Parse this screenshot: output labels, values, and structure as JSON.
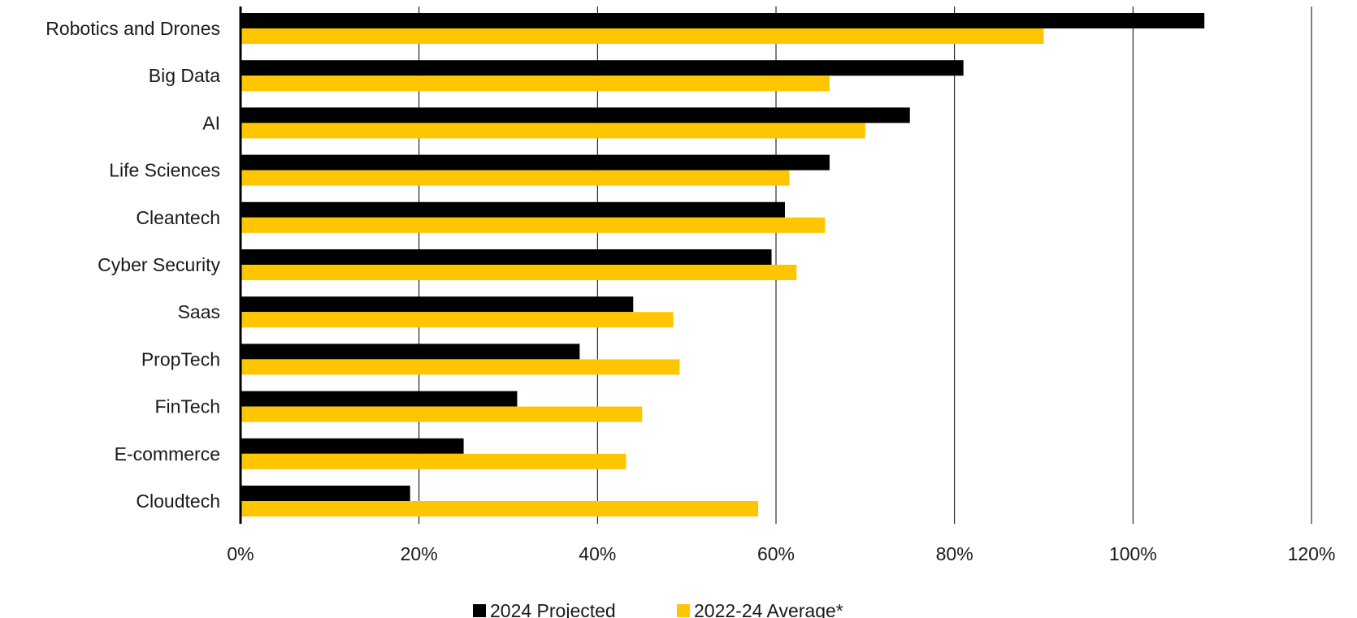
{
  "chart_data": {
    "type": "bar",
    "orientation": "horizontal",
    "categories": [
      "Robotics and Drones",
      "Big Data",
      "AI",
      "Life Sciences",
      "Cleantech",
      "Cyber Security",
      "Saas",
      "PropTech",
      "FinTech",
      "E-commerce",
      "Cloudtech"
    ],
    "series": [
      {
        "name": "2024 Projected",
        "color": "#000000",
        "values": [
          108,
          81,
          75,
          66,
          61,
          59.5,
          44,
          38,
          31,
          25,
          19
        ]
      },
      {
        "name": "2022-24 Average*",
        "color": "#FFC600",
        "values": [
          90,
          66,
          70,
          61.5,
          65.5,
          62.3,
          48.5,
          49.2,
          45,
          43.2,
          58
        ]
      }
    ],
    "xlim": [
      0,
      120
    ],
    "xticks": [
      0,
      20,
      40,
      60,
      80,
      100,
      120
    ],
    "xtick_labels": [
      "0%",
      "20%",
      "40%",
      "60%",
      "80%",
      "100%",
      "120%"
    ],
    "grid": "vertical",
    "legend_position": "bottom-center"
  }
}
